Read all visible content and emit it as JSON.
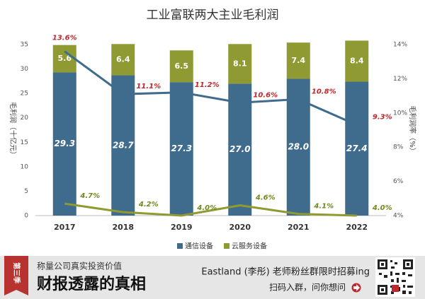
{
  "chart_data": {
    "type": "bar-line",
    "title": "工业富联两大主业毛利润",
    "categories": [
      "2017",
      "2018",
      "2019",
      "2020",
      "2021",
      "2022"
    ],
    "y_label": "毛利润（十亿元）",
    "y2_label": "毛利润率（%）",
    "ylim": [
      0,
      35
    ],
    "yticks": [
      0,
      5,
      10,
      15,
      20,
      25,
      30,
      35
    ],
    "y2lim": [
      4,
      14
    ],
    "y2ticks": [
      {
        "value": 4,
        "label": "4%"
      },
      {
        "value": 6,
        "label": "6%"
      },
      {
        "value": 8,
        "label": "8%"
      },
      {
        "value": 10,
        "label": "10%"
      },
      {
        "value": 12,
        "label": "12%"
      },
      {
        "value": 14,
        "label": "14%"
      }
    ],
    "stacked": true,
    "grid": false,
    "series": [
      {
        "name": "通信设备",
        "type": "bar",
        "color": "#3f6b8c",
        "values": [
          29.3,
          28.7,
          27.3,
          27.0,
          28.0,
          27.4
        ],
        "value_labels": [
          "29.3",
          "28.7",
          "27.3",
          "27.0",
          "28.0",
          "27.4"
        ]
      },
      {
        "name": "云服务设备",
        "type": "bar",
        "color": "#8f9a32",
        "values": [
          5.6,
          6.4,
          6.5,
          8.1,
          7.4,
          8.4
        ]
      },
      {
        "type": "line",
        "axis": "y2",
        "color": "#3f6b8c",
        "label_color": "#c0282d",
        "values": [
          13.6,
          11.1,
          11.2,
          10.6,
          10.8,
          9.3
        ],
        "value_labels": [
          "13.6%",
          "11.1%",
          "11.2%",
          "10.6%",
          "10.8%",
          "9.3%"
        ]
      },
      {
        "type": "line",
        "axis": "y2",
        "color": "#8f9a32",
        "label_color": "#6f8a1e",
        "values": [
          4.7,
          4.2,
          4.0,
          4.6,
          4.1,
          4.0
        ],
        "value_labels": [
          "4.7%",
          "4.2%",
          "4.0%",
          "4.6%",
          "4.1%",
          "4.0%"
        ]
      }
    ]
  },
  "footer": {
    "badge": "第三季",
    "subtitle": "称量公司真实投资价值",
    "title": "财报透露的真相",
    "promo": "Eastland (李彤) 老师粉丝群限时招募ing",
    "cta": "扫码入群，问你想问"
  }
}
